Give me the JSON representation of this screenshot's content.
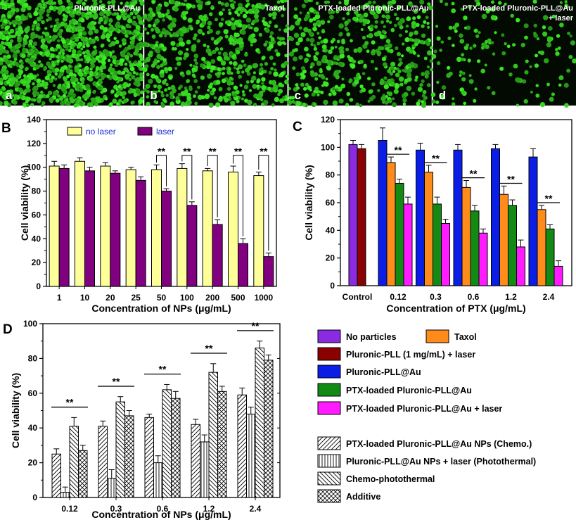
{
  "panel_labels": [
    "A",
    "B",
    "C",
    "D"
  ],
  "micrographs": [
    {
      "title": "Pluronic-PLL@Au",
      "title2": "",
      "letter": "a",
      "density": 1.0
    },
    {
      "title": "Taxol",
      "title2": "",
      "letter": "b",
      "density": 0.55
    },
    {
      "title": "PTX-loaded Pluronic-PLL@Au",
      "title2": "",
      "letter": "c",
      "density": 0.42
    },
    {
      "title": "PTX-loaded Pluronic-PLL@Au",
      "title2": "+ laser",
      "letter": "d",
      "density": 0.14
    }
  ],
  "legend_panel": {
    "colors": [
      {
        "label": "No particles",
        "color": "#8a2be2"
      },
      {
        "label": "Taxol",
        "color": "#ff8c1a"
      },
      {
        "label": "Pluronic-PLL (1 mg/mL) + laser",
        "color": "#8b0000"
      },
      {
        "label": "Pluronic-PLL@Au",
        "color": "#0a1ee6"
      },
      {
        "label": "PTX-loaded Pluronic-PLL@Au",
        "color": "#138a13"
      },
      {
        "label": "PTX-loaded Pluronic-PLL@Au + laser",
        "color": "#ff1aff"
      }
    ],
    "patterns": [
      {
        "label": "PTX-loaded Pluronic-PLL@Au NPs (Chemo.)",
        "pattern": "fwd"
      },
      {
        "label": "Pluronic-PLL@Au NPs + laser (Photothermal)",
        "pattern": "vert"
      },
      {
        "label": "Chemo-photothermal",
        "pattern": "back"
      },
      {
        "label": "Additive",
        "pattern": "cross"
      }
    ]
  },
  "chart_data": [
    {
      "type": "bar",
      "panel": "B",
      "categories": [
        "1",
        "10",
        "20",
        "25",
        "50",
        "100",
        "200",
        "500",
        "1000"
      ],
      "series": [
        {
          "name": "no laser",
          "color": "#ffff99",
          "values": [
            101,
            105,
            101,
            98,
            98,
            99,
            97,
            96,
            93
          ],
          "errors": [
            4,
            3,
            3,
            2,
            4,
            4,
            2,
            5,
            3
          ]
        },
        {
          "name": "laser",
          "color": "#800080",
          "values": [
            99,
            97,
            95,
            89,
            80,
            68,
            52,
            36,
            25
          ],
          "errors": [
            3,
            3,
            2,
            3,
            2,
            3,
            4,
            4,
            3
          ]
        }
      ],
      "significance": [
        {
          "index": 4,
          "label": "**"
        },
        {
          "index": 5,
          "label": "**"
        },
        {
          "index": 6,
          "label": "**"
        },
        {
          "index": 7,
          "label": "**"
        },
        {
          "index": 8,
          "label": "**"
        }
      ],
      "xlabel": "Concentration of NPs (μg/mL)",
      "ylabel": "Cell viability (%)",
      "ylim": [
        0,
        140
      ],
      "yticks": [
        0,
        20,
        40,
        60,
        80,
        100,
        120,
        140
      ],
      "legend_placement": "top-left"
    },
    {
      "type": "bar",
      "panel": "C",
      "control": {
        "category": "Control",
        "values": [
          102,
          99
        ],
        "errors": [
          3,
          3
        ],
        "colors": [
          "#8a2be2",
          "#8b0000"
        ]
      },
      "categories": [
        "0.12",
        "0.3",
        "0.6",
        "1.2",
        "2.4"
      ],
      "series": [
        {
          "name": "Pluronic-PLL@Au",
          "color": "#0a1ee6",
          "values": [
            105,
            98,
            98,
            99,
            93
          ],
          "errors": [
            9,
            5,
            4,
            3,
            6
          ]
        },
        {
          "name": "Taxol",
          "color": "#ff8c1a",
          "values": [
            89,
            82,
            71,
            66,
            55
          ],
          "errors": [
            4,
            5,
            5,
            6,
            3
          ]
        },
        {
          "name": "PTX-loaded Pluronic-PLL@Au",
          "color": "#138a13",
          "values": [
            74,
            59,
            54,
            58,
            41
          ],
          "errors": [
            3,
            5,
            4,
            4,
            3
          ]
        },
        {
          "name": "PTX-loaded Pluronic-PLL@Au + laser",
          "color": "#ff1aff",
          "values": [
            59,
            45,
            38,
            28,
            14
          ],
          "errors": [
            5,
            3,
            3,
            5,
            4
          ]
        }
      ],
      "significance": [
        {
          "index": 0,
          "label": "**"
        },
        {
          "index": 1,
          "label": "**"
        },
        {
          "index": 2,
          "label": "**"
        },
        {
          "index": 3,
          "label": "**"
        },
        {
          "index": 4,
          "label": "**"
        }
      ],
      "xlabel": "Concentration of PTX (μg/mL)",
      "ylabel": "Cell viability (%)",
      "ylim": [
        0,
        120
      ],
      "yticks": [
        0,
        20,
        40,
        60,
        80,
        100,
        120
      ]
    },
    {
      "type": "bar",
      "panel": "D",
      "categories": [
        "0.12",
        "0.3",
        "0.6",
        "1.2",
        "2.4"
      ],
      "series": [
        {
          "name": "PTX-loaded Pluronic-PLL@Au NPs (Chemo.)",
          "pattern": "fwd",
          "values": [
            25,
            41,
            46,
            42,
            59
          ],
          "errors": [
            3,
            3,
            2,
            3,
            4
          ]
        },
        {
          "name": "Pluronic-PLL@Au NPs + laser (Photothermal)",
          "pattern": "vert",
          "values": [
            3,
            11,
            20,
            32,
            48
          ],
          "errors": [
            3,
            5,
            4,
            4,
            4
          ]
        },
        {
          "name": "Chemo-photothermal",
          "pattern": "back",
          "values": [
            41,
            55,
            62,
            72,
            86
          ],
          "errors": [
            5,
            3,
            3,
            5,
            4
          ]
        },
        {
          "name": "Additive",
          "pattern": "cross",
          "values": [
            27,
            47,
            57,
            61,
            79
          ],
          "errors": [
            3,
            3,
            4,
            3,
            3
          ]
        }
      ],
      "significance": [
        {
          "index": 0,
          "label": "**"
        },
        {
          "index": 1,
          "label": "**"
        },
        {
          "index": 2,
          "label": "**"
        },
        {
          "index": 3,
          "label": "**"
        },
        {
          "index": 4,
          "label": "**"
        }
      ],
      "xlabel": "Concentration of NPs (μg/mL)",
      "ylabel": "Cell viability (%)",
      "ylim": [
        0,
        100
      ],
      "yticks": [
        0,
        20,
        40,
        60,
        80,
        100
      ]
    }
  ]
}
